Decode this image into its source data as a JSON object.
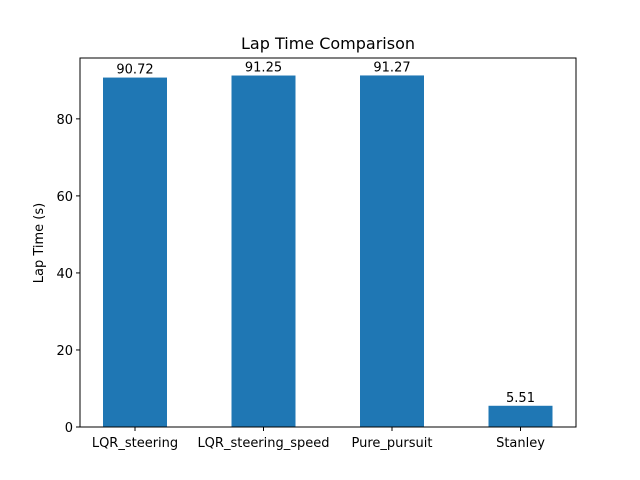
{
  "chart_data": {
    "type": "bar",
    "title": "Lap Time Comparison",
    "xlabel": "",
    "ylabel": "Lap Time (s)",
    "categories": [
      "LQR_steering",
      "LQR_steering_speed",
      "Pure_pursuit",
      "Stanley"
    ],
    "values": [
      90.72,
      91.25,
      91.27,
      5.51
    ],
    "data_labels": [
      "90.72",
      "91.25",
      "91.27",
      "5.51"
    ],
    "ylim": [
      0,
      95.8
    ],
    "yticks": [
      0,
      20,
      40,
      60,
      80
    ],
    "ytick_labels": [
      "0",
      "20",
      "40",
      "60",
      "80"
    ],
    "grid": false,
    "bar_color": "#1f77b4"
  }
}
